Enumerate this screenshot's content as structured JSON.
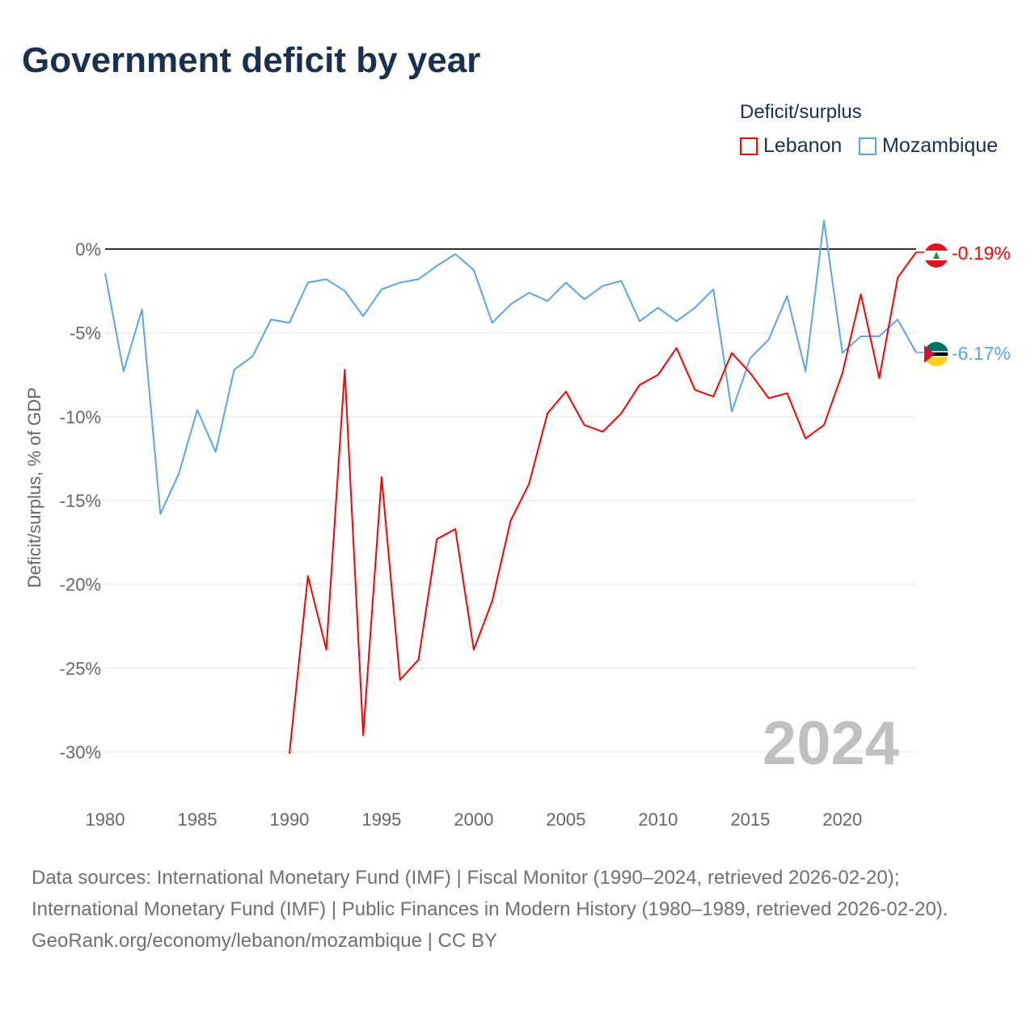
{
  "chart_data": {
    "type": "line",
    "title": "Government deficit by year",
    "ylabel": "Deficit/surplus, % of GDP",
    "xlabel": "",
    "xlim": [
      1980,
      2024
    ],
    "ylim": [
      -30,
      0
    ],
    "yticks": [
      0,
      -5,
      -10,
      -15,
      -20,
      -25,
      -30
    ],
    "ytick_labels": [
      "0%",
      "-5%",
      "-10%",
      "-15%",
      "-20%",
      "-25%",
      "-30%"
    ],
    "xticks": [
      1980,
      1985,
      1990,
      1995,
      2000,
      2005,
      2010,
      2015,
      2020
    ],
    "xtick_labels": [
      "1980",
      "1985",
      "1990",
      "1995",
      "2000",
      "2005",
      "2010",
      "2015",
      "2020"
    ],
    "grid": true,
    "legend_title": "Deficit/surplus",
    "legend_position": "top-right",
    "watermark_year": "2024",
    "series": [
      {
        "name": "Lebanon",
        "color": "#ff0000",
        "end_label": "-0.19%",
        "flag": "lebanon-flag",
        "x": [
          1990,
          1991,
          1992,
          1993,
          1994,
          1995,
          1996,
          1997,
          1998,
          1999,
          2000,
          2001,
          2002,
          2003,
          2004,
          2005,
          2006,
          2007,
          2008,
          2009,
          2010,
          2011,
          2012,
          2013,
          2014,
          2015,
          2016,
          2017,
          2018,
          2019,
          2020,
          2021,
          2022,
          2023,
          2024
        ],
        "values": [
          -30.1,
          -19.5,
          -23.9,
          -7.2,
          -29.0,
          -13.6,
          -25.7,
          -24.5,
          -17.3,
          -16.7,
          -23.9,
          -21.0,
          -16.2,
          -14.0,
          -9.8,
          -8.5,
          -10.5,
          -10.9,
          -9.8,
          -8.1,
          -7.5,
          -5.9,
          -8.4,
          -8.8,
          -6.2,
          -7.4,
          -8.9,
          -8.6,
          -11.3,
          -10.5,
          -7.4,
          -2.7,
          -7.7,
          -1.7,
          -0.19
        ]
      },
      {
        "name": "Mozambique",
        "color": "#5aa5ea",
        "end_label": "-6.17%",
        "flag": "mozambique-flag",
        "x": [
          1980,
          1981,
          1982,
          1983,
          1984,
          1985,
          1986,
          1987,
          1988,
          1989,
          1990,
          1991,
          1992,
          1993,
          1994,
          1995,
          1996,
          1997,
          1998,
          1999,
          2000,
          2001,
          2002,
          2003,
          2004,
          2005,
          2006,
          2007,
          2008,
          2009,
          2010,
          2011,
          2012,
          2013,
          2014,
          2015,
          2016,
          2017,
          2018,
          2019,
          2020,
          2021,
          2022,
          2023,
          2024
        ],
        "values": [
          -1.45,
          -7.3,
          -3.6,
          -15.8,
          -13.4,
          -9.6,
          -12.1,
          -7.2,
          -6.4,
          -4.2,
          -4.4,
          -2.0,
          -1.8,
          -2.5,
          -4.0,
          -2.4,
          -2.0,
          -1.8,
          -1.0,
          -0.3,
          -1.25,
          -4.4,
          -3.3,
          -2.6,
          -3.1,
          -2.0,
          -3.0,
          -2.2,
          -1.9,
          -4.3,
          -3.5,
          -4.3,
          -3.5,
          -2.4,
          -9.7,
          -6.5,
          -5.4,
          -2.8,
          -7.3,
          1.7,
          -6.2,
          -5.2,
          -5.2,
          -4.2,
          -6.17
        ]
      }
    ]
  },
  "footer": {
    "sources": "Data sources: International Monetary Fund (IMF) | Fiscal Monitor (1990–2024, retrieved 2026-02-20); International Monetary Fund (IMF) | Public Finances in Modern History (1980–1989, retrieved 2026-02-20).",
    "credit": "GeoRank.org/economy/lebanon/mozambique | CC BY"
  }
}
